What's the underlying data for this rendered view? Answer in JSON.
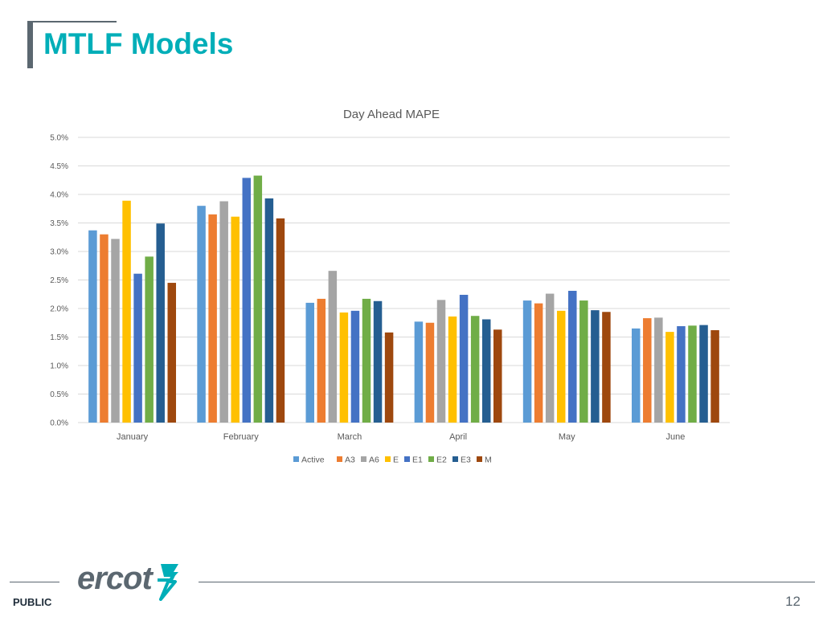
{
  "slide": {
    "title": "MTLF Models",
    "footer_label": "PUBLIC",
    "page_number": "12",
    "logo_text": "ercot"
  },
  "colors": {
    "accent": "#00aeb8",
    "title_bar": "#5b6770",
    "gridline": "#d9d9d9",
    "axis_text": "#595959"
  },
  "chart_data": {
    "type": "bar",
    "title": "Day Ahead MAPE",
    "xlabel": "",
    "ylabel": "",
    "categories": [
      "January",
      "February",
      "March",
      "April",
      "May",
      "June"
    ],
    "ylim": [
      0,
      5.0
    ],
    "yticks": [
      0,
      0.5,
      1.0,
      1.5,
      2.0,
      2.5,
      3.0,
      3.5,
      4.0,
      4.5,
      5.0
    ],
    "ytick_labels": [
      "0.0%",
      "0.5%",
      "1.0%",
      "1.5%",
      "2.0%",
      "2.5%",
      "3.0%",
      "3.5%",
      "4.0%",
      "4.5%",
      "5.0%"
    ],
    "unit": "%",
    "grid": true,
    "legend_position": "bottom",
    "series": [
      {
        "name": "Active",
        "color": "#5b9bd5",
        "values": [
          3.37,
          3.8,
          2.1,
          1.77,
          2.14,
          1.65
        ]
      },
      {
        "name": "A3",
        "color": "#ed7d31",
        "values": [
          3.3,
          3.65,
          2.17,
          1.75,
          2.09,
          1.83
        ]
      },
      {
        "name": "A6",
        "color": "#a5a5a5",
        "values": [
          3.22,
          3.88,
          2.66,
          2.15,
          2.26,
          1.84
        ]
      },
      {
        "name": "E",
        "color": "#ffc000",
        "values": [
          3.89,
          3.61,
          1.93,
          1.86,
          1.96,
          1.59
        ]
      },
      {
        "name": "E1",
        "color": "#4472c4",
        "values": [
          2.61,
          4.29,
          1.96,
          2.24,
          2.31,
          1.69
        ]
      },
      {
        "name": "E2",
        "color": "#70ad47",
        "values": [
          2.91,
          4.33,
          2.17,
          1.87,
          2.14,
          1.7
        ]
      },
      {
        "name": "E3",
        "color": "#255e91",
        "values": [
          3.49,
          3.93,
          2.13,
          1.81,
          1.97,
          1.71
        ]
      },
      {
        "name": "M",
        "color": "#9e480e",
        "values": [
          2.45,
          3.58,
          1.58,
          1.63,
          1.94,
          1.62
        ]
      }
    ]
  }
}
